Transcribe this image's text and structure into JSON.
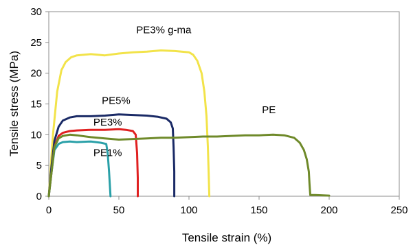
{
  "chart_data": {
    "type": "line",
    "title": "",
    "xlabel": "Tensile strain (%)",
    "ylabel": "Tensile stress (MPa)",
    "xlim": [
      0,
      250
    ],
    "ylim": [
      0,
      30
    ],
    "xticks": [
      0,
      50,
      100,
      150,
      200,
      250
    ],
    "yticks": [
      0,
      5,
      10,
      15,
      20,
      25,
      30
    ],
    "grid": false,
    "legend": "none (series labeled directly on the plot)",
    "series": [
      {
        "name": "PE3% g-ma",
        "color": "#f2e34a",
        "points": [
          [
            0,
            0
          ],
          [
            3,
            10
          ],
          [
            6,
            17
          ],
          [
            9,
            20.5
          ],
          [
            12,
            21.8
          ],
          [
            16,
            22.6
          ],
          [
            20,
            22.9
          ],
          [
            30,
            23.1
          ],
          [
            40,
            22.9
          ],
          [
            50,
            23.2
          ],
          [
            60,
            23.4
          ],
          [
            70,
            23.5
          ],
          [
            80,
            23.7
          ],
          [
            90,
            23.6
          ],
          [
            100,
            23.4
          ],
          [
            103,
            23.0
          ],
          [
            106,
            22.0
          ],
          [
            109,
            20.0
          ],
          [
            111,
            17.0
          ],
          [
            112.5,
            13.0
          ],
          [
            113.5,
            8.0
          ],
          [
            114,
            4.0
          ],
          [
            114.5,
            0
          ]
        ]
      },
      {
        "name": "PE5%",
        "color": "#1a2a66",
        "points": [
          [
            0,
            0
          ],
          [
            2,
            5
          ],
          [
            4,
            9
          ],
          [
            7,
            11.3
          ],
          [
            10,
            12.3
          ],
          [
            15,
            12.8
          ],
          [
            20,
            13.0
          ],
          [
            30,
            13.0
          ],
          [
            40,
            13.1
          ],
          [
            50,
            13.3
          ],
          [
            60,
            13.2
          ],
          [
            70,
            13.1
          ],
          [
            78,
            12.9
          ],
          [
            84,
            12.6
          ],
          [
            87,
            12.0
          ],
          [
            88.5,
            11.0
          ],
          [
            89,
            8.0
          ],
          [
            89.5,
            4.0
          ],
          [
            89.5,
            0
          ]
        ]
      },
      {
        "name": "PE3%",
        "color": "#e02020",
        "points": [
          [
            0,
            0
          ],
          [
            2,
            4
          ],
          [
            4,
            8
          ],
          [
            7,
            9.8
          ],
          [
            10,
            10.3
          ],
          [
            15,
            10.6
          ],
          [
            20,
            10.7
          ],
          [
            30,
            10.8
          ],
          [
            40,
            10.8
          ],
          [
            50,
            10.9
          ],
          [
            55,
            10.8
          ],
          [
            60,
            10.6
          ],
          [
            62,
            10.0
          ],
          [
            63,
            7.0
          ],
          [
            63.5,
            3.0
          ],
          [
            63.5,
            0
          ]
        ]
      },
      {
        "name": "PE1%",
        "color": "#2aa0a8",
        "points": [
          [
            0,
            0
          ],
          [
            2,
            4
          ],
          [
            4,
            7.5
          ],
          [
            7,
            8.5
          ],
          [
            10,
            8.8
          ],
          [
            15,
            8.9
          ],
          [
            20,
            8.8
          ],
          [
            30,
            8.9
          ],
          [
            37,
            8.7
          ],
          [
            41,
            8.5
          ],
          [
            42,
            7.0
          ],
          [
            43,
            4.0
          ],
          [
            44,
            0
          ]
        ]
      },
      {
        "name": "PE",
        "color": "#6f8a2a",
        "points": [
          [
            0,
            0
          ],
          [
            2,
            4
          ],
          [
            4,
            8
          ],
          [
            7,
            9.4
          ],
          [
            10,
            9.8
          ],
          [
            15,
            10.0
          ],
          [
            20,
            9.9
          ],
          [
            30,
            9.6
          ],
          [
            40,
            9.4
          ],
          [
            50,
            9.2
          ],
          [
            60,
            9.3
          ],
          [
            70,
            9.4
          ],
          [
            80,
            9.5
          ],
          [
            90,
            9.5
          ],
          [
            100,
            9.6
          ],
          [
            110,
            9.7
          ],
          [
            120,
            9.7
          ],
          [
            130,
            9.8
          ],
          [
            140,
            9.9
          ],
          [
            150,
            9.9
          ],
          [
            160,
            10.0
          ],
          [
            168,
            9.9
          ],
          [
            175,
            9.5
          ],
          [
            179,
            8.7
          ],
          [
            182,
            7.5
          ],
          [
            184,
            6.0
          ],
          [
            185.5,
            4.0
          ],
          [
            186,
            2.0
          ],
          [
            186.5,
            0.2
          ],
          [
            190,
            0.2
          ],
          [
            200,
            0.1
          ]
        ]
      }
    ],
    "annotations": [
      {
        "text": "PE3% g-ma",
        "series": "PE3% g-ma",
        "x": 82,
        "y": 26.5
      },
      {
        "text": "PE5%",
        "series": "PE5%",
        "x": 48,
        "y": 15.0
      },
      {
        "text": "PE3%",
        "series": "PE3%",
        "x": 42,
        "y": 11.5
      },
      {
        "text": "PE1%",
        "series": "PE1%",
        "x": 42,
        "y": 6.5
      },
      {
        "text": "PE",
        "series": "PE",
        "x": 157,
        "y": 13.5
      }
    ]
  }
}
